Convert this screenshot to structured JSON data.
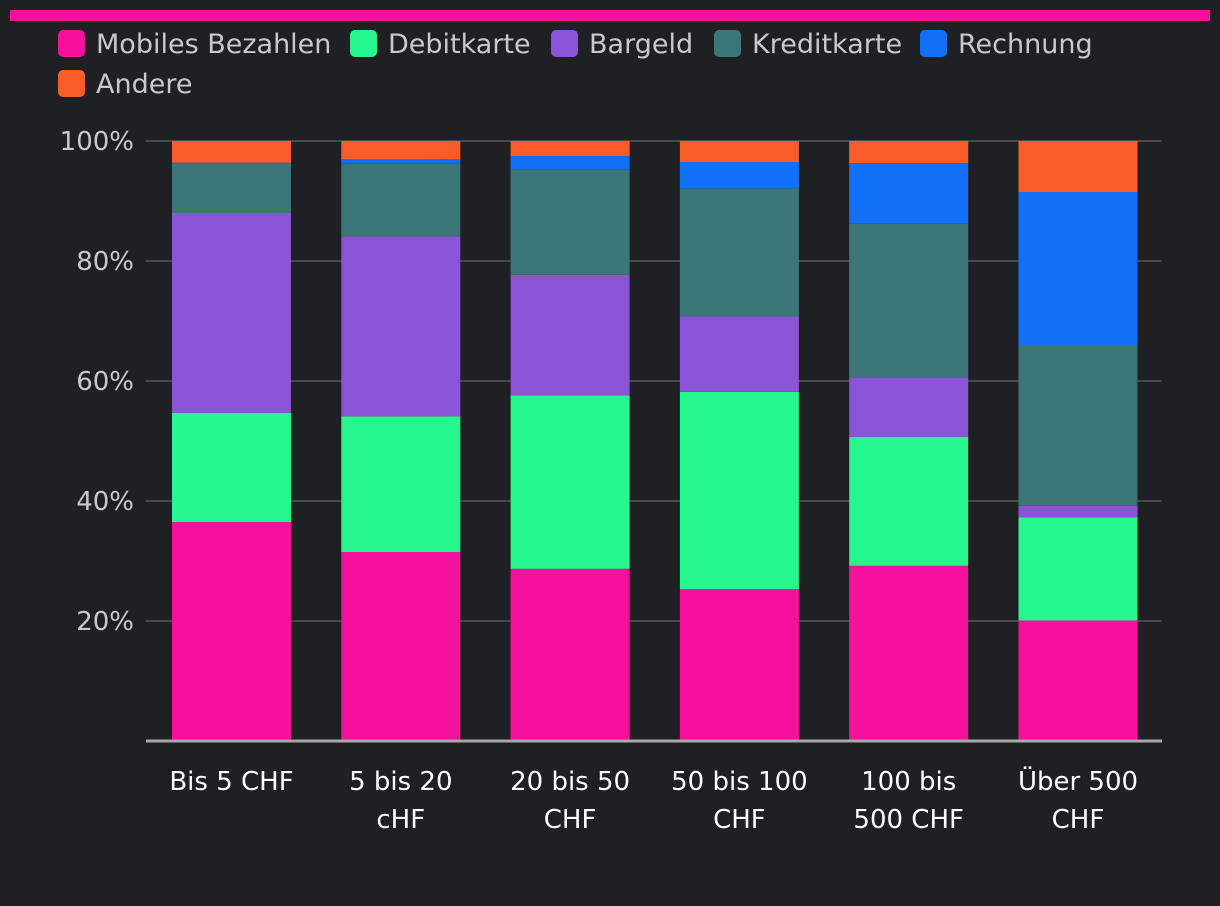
{
  "colors": {
    "background": "#1f2023",
    "accent_bar": "#f5119b",
    "grid": "#55575b",
    "axis": "#a8a8a8",
    "text": "#c9c9c9",
    "category_text": "#ffffff"
  },
  "chart_data": {
    "type": "bar",
    "stacked": true,
    "title": "",
    "xlabel": "",
    "ylabel": "",
    "ylim": [
      0,
      100
    ],
    "yticks": [
      {
        "value": 20,
        "label": "20%"
      },
      {
        "value": 40,
        "label": "40%"
      },
      {
        "value": 60,
        "label": "60%"
      },
      {
        "value": 80,
        "label": "80%"
      },
      {
        "value": 100,
        "label": "100%"
      }
    ],
    "grid": true,
    "legend_position": "top-left",
    "categories": [
      [
        "Bis 5 CHF"
      ],
      [
        "5 bis 20",
        "cHF"
      ],
      [
        "20 bis 50",
        "CHF"
      ],
      [
        "50 bis 100",
        "CHF"
      ],
      [
        "100 bis",
        "500 CHF"
      ],
      [
        "Über 500",
        "CHF"
      ]
    ],
    "series": [
      {
        "name": "Mobiles Bezahlen",
        "color": "#f5119b",
        "values": [
          36.5,
          31.5,
          28.7,
          25.3,
          29.2,
          20.1
        ]
      },
      {
        "name": "Debitkarte",
        "color": "#26f68e",
        "values": [
          18.2,
          22.6,
          28.9,
          32.9,
          21.5,
          17.2
        ]
      },
      {
        "name": "Bargeld",
        "color": "#8b53d5",
        "values": [
          33.3,
          30.0,
          20.1,
          12.6,
          9.9,
          1.9
        ]
      },
      {
        "name": "Kreditkarte",
        "color": "#3b7676",
        "values": [
          8.4,
          12.1,
          17.6,
          21.3,
          25.6,
          26.8
        ]
      },
      {
        "name": "Rechnung",
        "color": "#1170f7",
        "values": [
          0.0,
          0.8,
          2.2,
          4.4,
          10.1,
          25.5
        ]
      },
      {
        "name": "Andere",
        "color": "#f85c28",
        "values": [
          3.6,
          3.0,
          2.5,
          3.5,
          3.7,
          8.5
        ]
      }
    ]
  }
}
